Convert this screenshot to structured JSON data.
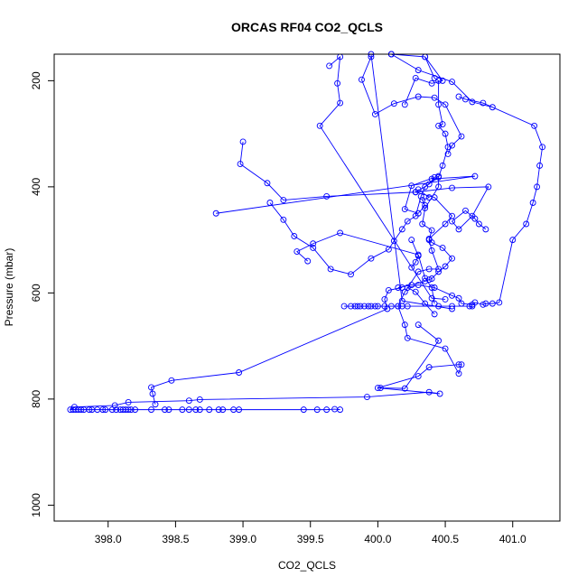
{
  "chart_data": {
    "type": "line",
    "title": "ORCAS RF04 CO2_QCLS",
    "xlabel": "CO2_QCLS",
    "ylabel": "Pressure (mbar)",
    "xlim": [
      397.6,
      401.35
    ],
    "ylim": [
      1030,
      150
    ],
    "y_reversed": true,
    "xticks": [
      {
        "value": 398.0,
        "label": "398.0"
      },
      {
        "value": 398.5,
        "label": "398.5"
      },
      {
        "value": 399.0,
        "label": "399.0"
      },
      {
        "value": 399.5,
        "label": "399.5"
      },
      {
        "value": 400.0,
        "label": "400.0"
      },
      {
        "value": 400.5,
        "label": "400.5"
      },
      {
        "value": 401.0,
        "label": "401.0"
      }
    ],
    "yticks": [
      {
        "value": 200,
        "label": "200"
      },
      {
        "value": 400,
        "label": "400"
      },
      {
        "value": 600,
        "label": "600"
      },
      {
        "value": 800,
        "label": "800"
      },
      {
        "value": 1000,
        "label": "1000"
      }
    ],
    "color": "#0000ff",
    "grid": false,
    "series": [
      {
        "points": [
          [
            399.72,
            820
          ],
          [
            399.68,
            819
          ],
          [
            399.62,
            820
          ],
          [
            399.55,
            820
          ],
          [
            399.45,
            820
          ],
          [
            398.97,
            820
          ],
          [
            398.93,
            820
          ],
          [
            398.85,
            820
          ],
          [
            398.82,
            820
          ],
          [
            398.75,
            820
          ],
          [
            398.68,
            820
          ],
          [
            398.65,
            820
          ],
          [
            398.6,
            820
          ],
          [
            398.55,
            820
          ],
          [
            398.45,
            820
          ],
          [
            398.42,
            820
          ],
          [
            398.32,
            820
          ],
          [
            398.2,
            820
          ],
          [
            398.17,
            820
          ],
          [
            398.15,
            820
          ],
          [
            398.13,
            820
          ],
          [
            398.11,
            820
          ],
          [
            398.09,
            820
          ],
          [
            398.06,
            820
          ],
          [
            398.03,
            820
          ],
          [
            397.98,
            820
          ],
          [
            397.96,
            820
          ],
          [
            397.92,
            820
          ],
          [
            397.88,
            820
          ],
          [
            397.86,
            820
          ],
          [
            397.82,
            820
          ],
          [
            397.8,
            820
          ],
          [
            397.78,
            820
          ],
          [
            397.76,
            820
          ],
          [
            397.74,
            820
          ],
          [
            397.72,
            820
          ],
          [
            397.75,
            815
          ],
          [
            398.05,
            812
          ],
          [
            398.15,
            806
          ],
          [
            398.6,
            803
          ],
          [
            398.68,
            801
          ],
          [
            399.92,
            796
          ],
          [
            400.38,
            787
          ],
          [
            400.46,
            790
          ],
          [
            400.0,
            779
          ],
          [
            400.3,
            757
          ],
          [
            400.38,
            740
          ],
          [
            400.6,
            735
          ],
          [
            400.62,
            735
          ],
          [
            400.6,
            752
          ],
          [
            400.5,
            705
          ],
          [
            400.22,
            685
          ],
          [
            400.2,
            660
          ],
          [
            400.15,
            625
          ],
          [
            400.2,
            598
          ],
          [
            400.3,
            560
          ],
          [
            400.38,
            555
          ],
          [
            400.45,
            555
          ],
          [
            400.4,
            520
          ],
          [
            400.38,
            500
          ],
          [
            400.4,
            482
          ],
          [
            400.33,
            470
          ],
          [
            400.35,
            440
          ],
          [
            400.45,
            400
          ],
          [
            400.45,
            382
          ],
          [
            400.48,
            360
          ],
          [
            400.52,
            325
          ],
          [
            400.5,
            300
          ],
          [
            400.45,
            285
          ],
          [
            400.48,
            282
          ],
          [
            400.45,
            245
          ],
          [
            400.45,
            200
          ],
          [
            400.42,
            195
          ],
          [
            400.35,
            155
          ],
          [
            400.1,
            150
          ]
        ]
      },
      {
        "points": [
          [
            398.35,
            810
          ],
          [
            398.33,
            790
          ],
          [
            398.32,
            778
          ],
          [
            398.47,
            765
          ],
          [
            398.97,
            750
          ],
          [
            400.07,
            630
          ],
          [
            400.05,
            612
          ],
          [
            400.08,
            595
          ],
          [
            400.18,
            590
          ],
          [
            400.15,
            590
          ],
          [
            400.25,
            585
          ],
          [
            400.35,
            578
          ],
          [
            400.38,
            575
          ],
          [
            400.4,
            573
          ],
          [
            400.45,
            560
          ],
          [
            400.5,
            550
          ],
          [
            400.55,
            535
          ],
          [
            400.48,
            515
          ],
          [
            400.4,
            505
          ],
          [
            400.38,
            498
          ],
          [
            400.5,
            470
          ],
          [
            400.55,
            455
          ],
          [
            400.42,
            420
          ],
          [
            400.28,
            410
          ],
          [
            400.38,
            395
          ],
          [
            400.42,
            382
          ],
          [
            400.25,
            398
          ],
          [
            400.2,
            442
          ],
          [
            400.3,
            450
          ],
          [
            400.35,
            435
          ],
          [
            400.33,
            425
          ],
          [
            400.38,
            420
          ],
          [
            400.3,
            405
          ]
        ]
      },
      {
        "points": [
          [
            399.2,
            430
          ],
          [
            399.3,
            462
          ],
          [
            399.38,
            493
          ],
          [
            399.52,
            515
          ],
          [
            399.65,
            555
          ],
          [
            399.8,
            565
          ],
          [
            399.95,
            535
          ],
          [
            400.08,
            518
          ],
          [
            400.12,
            502
          ],
          [
            400.18,
            480
          ],
          [
            400.22,
            465
          ],
          [
            400.28,
            455
          ],
          [
            400.32,
            418
          ],
          [
            400.35,
            400
          ],
          [
            400.45,
            380
          ]
        ]
      },
      {
        "points": [
          [
            400.42,
            640
          ],
          [
            400.35,
            620
          ],
          [
            400.28,
            598
          ],
          [
            400.22,
            590
          ],
          [
            400.3,
            585
          ],
          [
            400.42,
            590
          ],
          [
            400.55,
            605
          ],
          [
            400.6,
            610
          ],
          [
            400.62,
            620
          ],
          [
            400.7,
            622
          ],
          [
            400.72,
            618
          ],
          [
            400.78,
            622
          ],
          [
            400.8,
            620
          ],
          [
            400.85,
            620
          ],
          [
            400.9,
            618
          ],
          [
            401.0,
            500
          ],
          [
            401.1,
            470
          ],
          [
            401.15,
            430
          ],
          [
            401.18,
            400
          ],
          [
            401.2,
            360
          ],
          [
            401.22,
            325
          ],
          [
            401.16,
            285
          ],
          [
            400.78,
            242
          ],
          [
            400.65,
            235
          ],
          [
            400.6,
            230
          ]
        ]
      },
      {
        "points": [
          [
            399.0,
            315
          ],
          [
            398.98,
            357
          ],
          [
            399.18,
            393
          ],
          [
            399.3,
            425
          ],
          [
            399.62,
            418
          ],
          [
            400.28,
            410
          ],
          [
            400.55,
            402
          ],
          [
            400.82,
            400
          ],
          [
            400.7,
            455
          ],
          [
            400.6,
            480
          ],
          [
            400.55,
            465
          ],
          [
            400.65,
            445
          ],
          [
            400.72,
            460
          ],
          [
            400.75,
            470
          ],
          [
            400.8,
            480
          ]
        ]
      },
      {
        "points": [
          [
            398.8,
            450
          ],
          [
            400.72,
            380
          ],
          [
            400.4,
            385
          ]
        ]
      },
      {
        "points": [
          [
            399.75,
            625
          ],
          [
            399.8,
            625
          ],
          [
            399.83,
            625
          ],
          [
            399.85,
            625
          ],
          [
            399.87,
            625
          ],
          [
            399.9,
            625
          ],
          [
            399.93,
            625
          ],
          [
            399.95,
            625
          ],
          [
            399.98,
            625
          ],
          [
            400.0,
            625
          ],
          [
            400.05,
            625
          ],
          [
            400.1,
            625
          ],
          [
            400.15,
            625
          ],
          [
            400.18,
            625
          ],
          [
            400.22,
            625
          ],
          [
            400.45,
            625
          ],
          [
            400.55,
            625
          ],
          [
            400.68,
            625
          ],
          [
            400.7,
            625
          ]
        ]
      },
      {
        "points": [
          [
            399.48,
            540
          ],
          [
            399.4,
            522
          ],
          [
            399.52,
            507
          ],
          [
            399.72,
            487
          ],
          [
            400.3,
            528
          ],
          [
            400.35,
            572
          ],
          [
            400.4,
            590
          ],
          [
            400.42,
            620
          ]
        ]
      },
      {
        "points": [
          [
            399.64,
            172
          ],
          [
            399.72,
            155
          ],
          [
            399.7,
            205
          ],
          [
            399.72,
            242
          ],
          [
            399.57,
            285
          ],
          [
            400.4,
            610
          ],
          [
            400.5,
            612
          ]
        ]
      },
      {
        "points": [
          [
            399.95,
            155
          ],
          [
            399.88,
            198
          ],
          [
            399.98,
            263
          ],
          [
            400.12,
            243
          ],
          [
            400.3,
            230
          ],
          [
            400.42,
            232
          ],
          [
            400.5,
            245
          ],
          [
            400.62,
            305
          ],
          [
            400.55,
            322
          ],
          [
            400.52,
            338
          ]
        ]
      },
      {
        "points": [
          [
            399.95,
            150
          ],
          [
            400.18,
            615
          ],
          [
            400.55,
            630
          ]
        ]
      },
      {
        "points": [
          [
            400.35,
            155
          ],
          [
            400.48,
            200
          ],
          [
            400.4,
            205
          ],
          [
            400.28,
            195
          ],
          [
            400.2,
            245
          ]
        ]
      },
      {
        "points": [
          [
            400.1,
            150
          ],
          [
            400.3,
            180
          ],
          [
            400.55,
            202
          ],
          [
            400.7,
            240
          ],
          [
            400.85,
            250
          ]
        ]
      },
      {
        "points": [
          [
            400.3,
            660
          ],
          [
            400.45,
            690
          ],
          [
            400.2,
            780
          ],
          [
            400.02,
            779
          ]
        ]
      },
      {
        "points": [
          [
            400.25,
            500
          ],
          [
            400.3,
            530
          ],
          [
            400.28,
            542
          ],
          [
            400.25,
            552
          ]
        ]
      }
    ]
  }
}
